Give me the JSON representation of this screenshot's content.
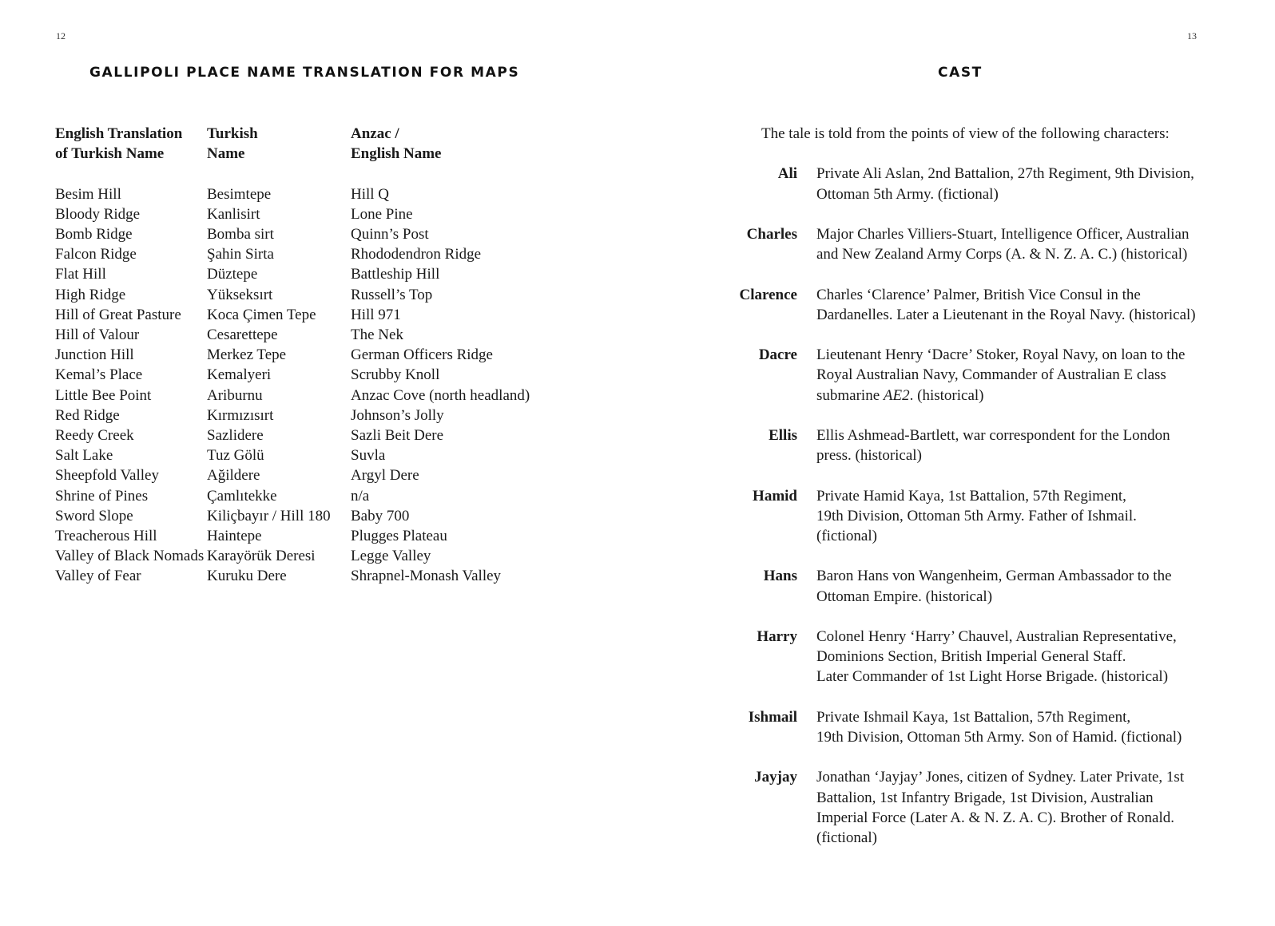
{
  "left_page": {
    "page_number": "12",
    "title": "GALLIPOLI PLACE NAME TRANSLATION FOR MAPS",
    "headers": [
      [
        "English Translation",
        "of Turkish Name"
      ],
      [
        "Turkish",
        "Name"
      ],
      [
        "Anzac /",
        "English Name"
      ]
    ],
    "rows": [
      [
        "Besim Hill",
        "Besimtepe",
        "Hill Q"
      ],
      [
        "Bloody Ridge",
        "Kanlisirt",
        "Lone Pine"
      ],
      [
        "Bomb Ridge",
        "Bomba sirt",
        "Quinn’s Post"
      ],
      [
        "Falcon Ridge",
        "Şahin Sirta",
        "Rhododendron Ridge"
      ],
      [
        "Flat Hill",
        "Düztepe",
        "Battleship Hill"
      ],
      [
        "High Ridge",
        "Yükseksırt",
        "Russell’s Top"
      ],
      [
        "Hill of Great Pasture",
        "Koca Çimen Tepe",
        "Hill 971"
      ],
      [
        "Hill of Valour",
        "Cesarettepe",
        "The Nek"
      ],
      [
        "Junction Hill",
        "Merkez Tepe",
        "German Officers Ridge"
      ],
      [
        "Kemal’s Place",
        "Kemalyeri",
        "Scrubby Knoll"
      ],
      [
        "Little Bee Point",
        "Ariburnu",
        "Anzac Cove (north headland)"
      ],
      [
        "Red Ridge",
        "Kırmızısırt",
        "Johnson’s Jolly"
      ],
      [
        "Reedy Creek",
        "Sazlidere",
        "Sazli Beit Dere"
      ],
      [
        "Salt Lake",
        "Tuz Gölü",
        "Suvla"
      ],
      [
        "Sheepfold Valley",
        "Ağildere",
        "Argyl Dere"
      ],
      [
        "Shrine of Pines",
        "Çamlıtekke",
        "n/a"
      ],
      [
        "Sword Slope",
        "Kiliçbayır / Hill 180",
        "Baby 700"
      ],
      [
        "Treacherous Hill",
        "Haintepe",
        "Plugges Plateau"
      ],
      [
        "Valley of Black Nomads",
        "Karayörük Deresi",
        "Legge Valley"
      ],
      [
        "Valley of Fear",
        "Kuruku Dere",
        "Shrapnel-Monash Valley"
      ]
    ]
  },
  "right_page": {
    "page_number": "13",
    "title": "CAST",
    "intro": "The tale is told from the points of view of the following characters:",
    "cast": [
      {
        "name": "Ali",
        "lines": [
          [
            "Private Ali Aslan, 2nd Battalion, 27th Regiment, 9th Division,"
          ],
          [
            "Ottoman 5th Army. (fictional)"
          ]
        ]
      },
      {
        "name": "Charles",
        "lines": [
          [
            "Major Charles Villiers-Stuart, Intelligence Officer, Australian"
          ],
          [
            "and New Zealand Army Corps (A. & N. Z. A. C.) (historical)"
          ]
        ]
      },
      {
        "name": "Clarence",
        "lines": [
          [
            "Charles ‘Clarence’ Palmer, British Vice Consul in the"
          ],
          [
            "Dardanelles. Later a Lieutenant in the Royal Navy. (historical)"
          ]
        ]
      },
      {
        "name": "Dacre",
        "lines": [
          [
            "Lieutenant Henry ‘Dacre’ Stoker, Royal Navy, on loan to the"
          ],
          [
            "Royal Australian Navy, Commander of Australian E class"
          ],
          [
            "submarine ",
            "AE2",
            ". (historical)"
          ]
        ]
      },
      {
        "name": "Ellis",
        "lines": [
          [
            "Ellis Ashmead-Bartlett, war correspondent for the London"
          ],
          [
            "press. (historical)"
          ]
        ]
      },
      {
        "name": "Hamid",
        "lines": [
          [
            "Private Hamid Kaya, 1st Battalion, 57th Regiment,"
          ],
          [
            "19th Division, Ottoman 5th Army. Father of Ishmail."
          ],
          [
            "(fictional)"
          ]
        ]
      },
      {
        "name": "Hans",
        "lines": [
          [
            "Baron Hans von Wangenheim, German Ambassador to the"
          ],
          [
            "Ottoman Empire. (historical)"
          ]
        ]
      },
      {
        "name": "Harry",
        "lines": [
          [
            "Colonel Henry ‘Harry’ Chauvel, Australian Representative,"
          ],
          [
            "Dominions Section, British Imperial General Staff."
          ],
          [
            "Later Commander of 1st Light Horse Brigade. (historical)"
          ]
        ]
      },
      {
        "name": "Ishmail",
        "lines": [
          [
            "Private Ishmail Kaya, 1st Battalion, 57th Regiment,"
          ],
          [
            "19th Division, Ottoman 5th Army. Son of Hamid. (fictional)"
          ]
        ]
      },
      {
        "name": "Jayjay",
        "lines": [
          [
            "Jonathan ‘Jayjay’ Jones, citizen of Sydney. Later Private, 1st"
          ],
          [
            "Battalion, 1st Infantry Brigade, 1st Division, Australian"
          ],
          [
            "Imperial Force (Later A. & N. Z. A. C). Brother of Ronald."
          ],
          [
            "(fictional)"
          ]
        ]
      }
    ]
  }
}
